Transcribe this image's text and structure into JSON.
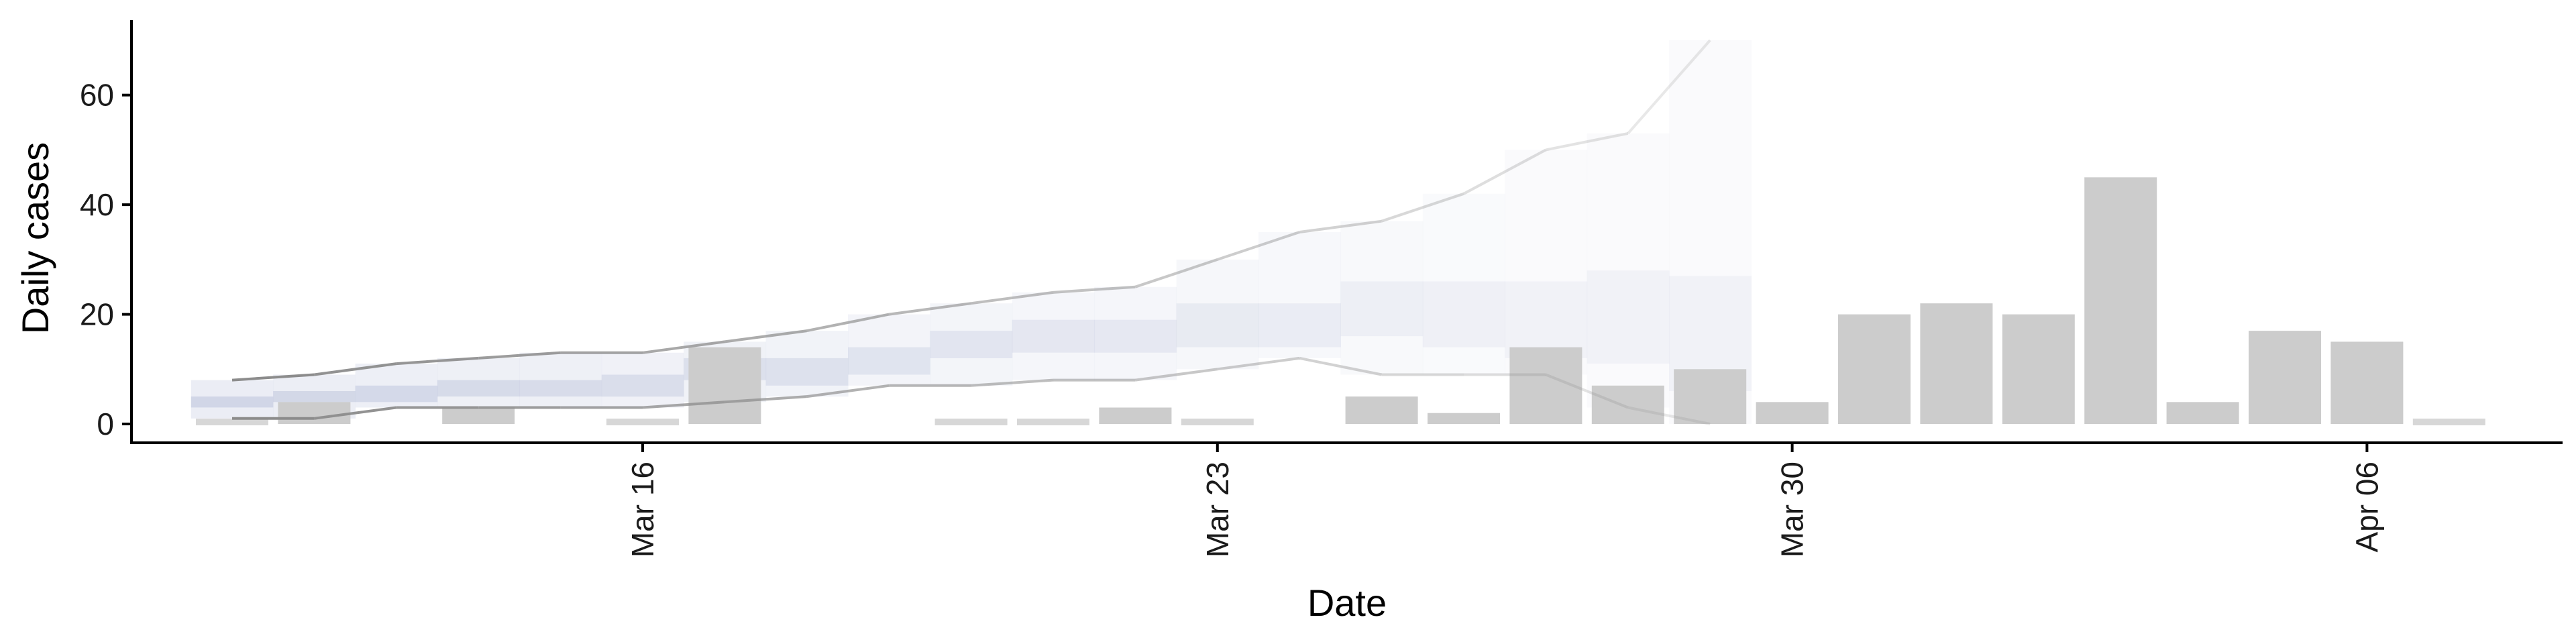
{
  "chart_data": {
    "type": "bar",
    "xlabel": "Date",
    "ylabel": "Daily cases",
    "ylim": [
      0,
      70
    ],
    "xlim": [
      "2020-03-11",
      "2020-04-08"
    ],
    "y_ticks": [
      0,
      20,
      40,
      60
    ],
    "x_ticks": [
      {
        "date": "2020-03-16",
        "label": "Mar 16"
      },
      {
        "date": "2020-03-23",
        "label": "Mar 23"
      },
      {
        "date": "2020-03-30",
        "label": "Mar 30"
      },
      {
        "date": "2020-04-06",
        "label": "Apr 06"
      }
    ],
    "grid": false,
    "legend": "none",
    "colors": {
      "bars": "#cccccc",
      "bars_low": "#d7d7d7",
      "band_outer": "#e4e7f1",
      "band_inner": "#bcc3db",
      "bound_line": "#8c8c8c",
      "axis": "#000000"
    },
    "bars": [
      {
        "date": "2020-03-11",
        "value": 1
      },
      {
        "date": "2020-03-12",
        "value": 4
      },
      {
        "date": "2020-03-14",
        "value": 3
      },
      {
        "date": "2020-03-16",
        "value": 0
      },
      {
        "date": "2020-03-17",
        "value": 14
      },
      {
        "date": "2020-03-20",
        "value": 1
      },
      {
        "date": "2020-03-21",
        "value": 1
      },
      {
        "date": "2020-03-22",
        "value": 3
      },
      {
        "date": "2020-03-23",
        "value": 1
      },
      {
        "date": "2020-03-25",
        "value": 5
      },
      {
        "date": "2020-03-26",
        "value": 2
      },
      {
        "date": "2020-03-27",
        "value": 14
      },
      {
        "date": "2020-03-28",
        "value": 7
      },
      {
        "date": "2020-03-29",
        "value": 10
      },
      {
        "date": "2020-03-30",
        "value": 4
      },
      {
        "date": "2020-03-31",
        "value": 20
      },
      {
        "date": "2020-04-01",
        "value": 22
      },
      {
        "date": "2020-04-02",
        "value": 20
      },
      {
        "date": "2020-04-03",
        "value": 45
      },
      {
        "date": "2020-04-04",
        "value": 4
      },
      {
        "date": "2020-04-05",
        "value": 17
      },
      {
        "date": "2020-04-06",
        "value": 15
      },
      {
        "date": "2020-04-07",
        "value": 1
      }
    ],
    "estimate": [
      {
        "date": "2020-03-11",
        "lower": 1,
        "inner_lower": 3,
        "inner_upper": 5,
        "upper": 8
      },
      {
        "date": "2020-03-12",
        "lower": 1,
        "inner_lower": 4,
        "inner_upper": 6,
        "upper": 9
      },
      {
        "date": "2020-03-13",
        "lower": 3,
        "inner_lower": 4,
        "inner_upper": 7,
        "upper": 11
      },
      {
        "date": "2020-03-14",
        "lower": 3,
        "inner_lower": 5,
        "inner_upper": 8,
        "upper": 12
      },
      {
        "date": "2020-03-15",
        "lower": 3,
        "inner_lower": 5,
        "inner_upper": 8,
        "upper": 13
      },
      {
        "date": "2020-03-16",
        "lower": 3,
        "inner_lower": 5,
        "inner_upper": 9,
        "upper": 13
      },
      {
        "date": "2020-03-17",
        "lower": 4,
        "inner_lower": 8,
        "inner_upper": 12,
        "upper": 15
      },
      {
        "date": "2020-03-18",
        "lower": 5,
        "inner_lower": 7,
        "inner_upper": 12,
        "upper": 17
      },
      {
        "date": "2020-03-19",
        "lower": 7,
        "inner_lower": 9,
        "inner_upper": 14,
        "upper": 20
      },
      {
        "date": "2020-03-20",
        "lower": 7,
        "inner_lower": 12,
        "inner_upper": 17,
        "upper": 22
      },
      {
        "date": "2020-03-21",
        "lower": 8,
        "inner_lower": 13,
        "inner_upper": 19,
        "upper": 24
      },
      {
        "date": "2020-03-22",
        "lower": 8,
        "inner_lower": 13,
        "inner_upper": 19,
        "upper": 25
      },
      {
        "date": "2020-03-23",
        "lower": 10,
        "inner_lower": 14,
        "inner_upper": 22,
        "upper": 30
      },
      {
        "date": "2020-03-24",
        "lower": 12,
        "inner_lower": 14,
        "inner_upper": 22,
        "upper": 35
      },
      {
        "date": "2020-03-25",
        "lower": 9,
        "inner_lower": 16,
        "inner_upper": 26,
        "upper": 37
      },
      {
        "date": "2020-03-26",
        "lower": 9,
        "inner_lower": 14,
        "inner_upper": 26,
        "upper": 42
      },
      {
        "date": "2020-03-27",
        "lower": 9,
        "inner_lower": 12,
        "inner_upper": 26,
        "upper": 50
      },
      {
        "date": "2020-03-28",
        "lower": 3,
        "inner_lower": 11,
        "inner_upper": 28,
        "upper": 53
      },
      {
        "date": "2020-03-29",
        "lower": 0,
        "inner_lower": 6,
        "inner_upper": 27,
        "upper": 70
      }
    ]
  }
}
